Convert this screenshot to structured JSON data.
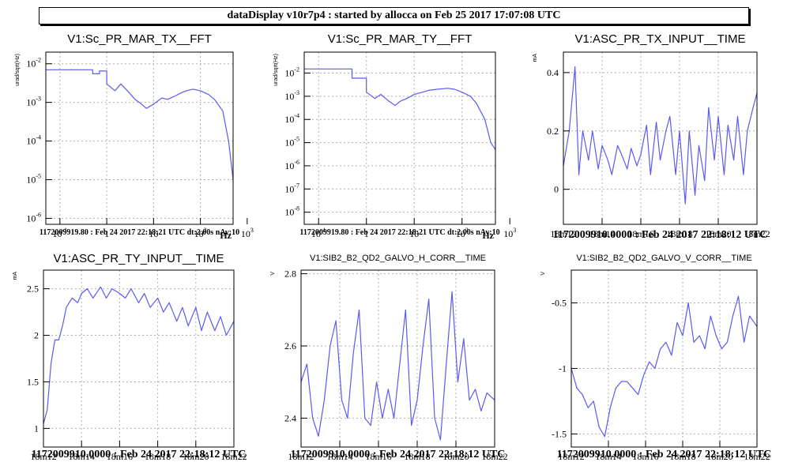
{
  "header": {
    "title": "dataDisplay v10r7p4 : started by allocca on Feb 25 2017 17:07:08 UTC"
  },
  "colors": {
    "trace": "#5b5bef",
    "grid": "#b0b0b0"
  },
  "chart_data": [
    {
      "id": "p1",
      "type": "line",
      "scale": "loglog",
      "title": "V1:Sc_PR_MAR_TX__FFT",
      "ylabel": "urad/sqrt(Hz)",
      "xunit": "Hz",
      "xlim": [
        0.05,
        500
      ],
      "ylim": [
        7e-07,
        0.02
      ],
      "xticks": [
        {
          "v": 0.1,
          "l": "10",
          "e": "-1"
        },
        {
          "v": 1,
          "l": "1",
          "e": ""
        },
        {
          "v": 10,
          "l": "10",
          "e": ""
        },
        {
          "v": 100,
          "l": "10",
          "e": "2"
        },
        {
          "v": 1000,
          "l": "10",
          "e": "3"
        }
      ],
      "yticks": [
        {
          "v": 1e-06,
          "l": "10",
          "e": "-6"
        },
        {
          "v": 1e-05,
          "l": "10",
          "e": "-5"
        },
        {
          "v": 0.0001,
          "l": "10",
          "e": "-4"
        },
        {
          "v": 0.001,
          "l": "10",
          "e": "-3"
        },
        {
          "v": 0.01,
          "l": "10",
          "e": "-2"
        }
      ],
      "footer": "1172009919.80 : Feb 24 2017 22:18:21 UTC dt:2.00s nAv:10",
      "x": [
        0.05,
        0.5,
        0.5,
        0.7,
        0.7,
        1.0,
        1.0,
        1.5,
        2,
        3,
        4,
        5,
        7,
        10,
        15,
        20,
        30,
        40,
        50,
        70,
        100,
        150,
        200,
        300,
        400,
        500
      ],
      "y": [
        0.007,
        0.007,
        0.0055,
        0.0055,
        0.0065,
        0.0065,
        0.003,
        0.002,
        0.003,
        0.0018,
        0.0012,
        0.001,
        0.0007,
        0.0009,
        0.0013,
        0.0012,
        0.0015,
        0.0018,
        0.002,
        0.0022,
        0.002,
        0.0016,
        0.0012,
        0.0006,
        0.0001,
        1e-05
      ]
    },
    {
      "id": "p2",
      "type": "line",
      "scale": "loglog",
      "title": "V1:Sc_PR_MAR_TY__FFT",
      "ylabel": "urad/sqrt(Hz)",
      "xunit": "Hz",
      "xlim": [
        0.05,
        500
      ],
      "ylim": [
        3e-09,
        0.08
      ],
      "xticks": [
        {
          "v": 0.1,
          "l": "10",
          "e": "-1"
        },
        {
          "v": 1,
          "l": "1",
          "e": ""
        },
        {
          "v": 10,
          "l": "10",
          "e": ""
        },
        {
          "v": 100,
          "l": "10",
          "e": "2"
        },
        {
          "v": 1000,
          "l": "10",
          "e": "3"
        }
      ],
      "yticks": [
        {
          "v": 1e-08,
          "l": "10",
          "e": "-8"
        },
        {
          "v": 1e-07,
          "l": "10",
          "e": "-7"
        },
        {
          "v": 1e-06,
          "l": "10",
          "e": "-6"
        },
        {
          "v": 1e-05,
          "l": "10",
          "e": "-5"
        },
        {
          "v": 0.0001,
          "l": "10",
          "e": "-4"
        },
        {
          "v": 0.001,
          "l": "10",
          "e": "-3"
        },
        {
          "v": 0.01,
          "l": "10",
          "e": "-2"
        }
      ],
      "footer": "1172009919.80 : Feb 24 2017 22:18:21 UTC dt:2.00s nAv:10",
      "x": [
        0.05,
        0.5,
        0.5,
        1.0,
        1.0,
        1.5,
        2,
        3,
        4,
        5,
        7,
        10,
        15,
        20,
        30,
        50,
        70,
        100,
        150,
        200,
        300,
        400,
        500
      ],
      "y": [
        0.015,
        0.015,
        0.006,
        0.006,
        0.0015,
        0.0008,
        0.0012,
        0.0006,
        0.0004,
        0.0006,
        0.0008,
        0.0012,
        0.0015,
        0.0018,
        0.002,
        0.0022,
        0.002,
        0.0015,
        0.001,
        0.0005,
        0.0001,
        1e-05,
        5e-06
      ]
    },
    {
      "id": "p3",
      "type": "line",
      "scale": "linear",
      "title": "V1:ASC_PR_TX_INPUT__TIME",
      "ylabel": "mA",
      "xlim": [
        0,
        10
      ],
      "ylim": [
        -0.12,
        0.47
      ],
      "xticks": [
        {
          "v": 0,
          "l": "18m12"
        },
        {
          "v": 2,
          "l": "18m14"
        },
        {
          "v": 4,
          "l": "18m16"
        },
        {
          "v": 6,
          "l": "18m18"
        },
        {
          "v": 8,
          "l": "18m20"
        },
        {
          "v": 10,
          "l": "18m22"
        }
      ],
      "yticks": [
        {
          "v": 0,
          "l": "0"
        },
        {
          "v": 0.2,
          "l": "0.2"
        },
        {
          "v": 0.4,
          "l": "0.4"
        }
      ],
      "footer": "1172009910.0000 : Feb 24 2017 22:18:12 UTC",
      "x": [
        0,
        0.3,
        0.6,
        0.8,
        1.0,
        1.3,
        1.5,
        1.8,
        2.0,
        2.3,
        2.5,
        2.8,
        3.0,
        3.3,
        3.5,
        3.8,
        4.0,
        4.3,
        4.5,
        4.8,
        5.0,
        5.3,
        5.5,
        5.8,
        6.0,
        6.3,
        6.5,
        6.8,
        7.0,
        7.3,
        7.5,
        7.8,
        8.0,
        8.3,
        8.5,
        8.8,
        9.0,
        9.3,
        9.5,
        9.8,
        10
      ],
      "y": [
        0.08,
        0.2,
        0.42,
        0.05,
        0.2,
        0.1,
        0.2,
        0.07,
        0.15,
        0.1,
        0.05,
        0.15,
        0.12,
        0.07,
        0.14,
        0.08,
        0.12,
        0.22,
        0.05,
        0.23,
        0.1,
        0.2,
        0.25,
        0.05,
        0.2,
        -0.05,
        0.2,
        -0.02,
        0.15,
        0.03,
        0.28,
        0.1,
        0.25,
        0.05,
        0.22,
        0.1,
        0.25,
        0.05,
        0.2,
        0.28,
        0.33
      ]
    },
    {
      "id": "p4",
      "type": "line",
      "scale": "linear",
      "title": "V1:ASC_PR_TY_INPUT__TIME",
      "ylabel": "mA",
      "xlim": [
        0,
        10
      ],
      "ylim": [
        0.8,
        2.7
      ],
      "xticks": [
        {
          "v": 0,
          "l": "18m12"
        },
        {
          "v": 2,
          "l": "18m14"
        },
        {
          "v": 4,
          "l": "18m16"
        },
        {
          "v": 6,
          "l": "18m18"
        },
        {
          "v": 8,
          "l": "18m20"
        },
        {
          "v": 10,
          "l": "18m22"
        }
      ],
      "yticks": [
        {
          "v": 1,
          "l": "1"
        },
        {
          "v": 1.5,
          "l": "1.5"
        },
        {
          "v": 2,
          "l": "2"
        },
        {
          "v": 2.5,
          "l": "2.5"
        }
      ],
      "footer": "1172009910.0000 : Feb 24 2017 22:18:12 UTC",
      "x": [
        0,
        0.2,
        0.4,
        0.6,
        0.8,
        1.0,
        1.2,
        1.5,
        1.8,
        2.0,
        2.3,
        2.6,
        3.0,
        3.3,
        3.6,
        4.0,
        4.3,
        4.6,
        5.0,
        5.3,
        5.6,
        6.0,
        6.3,
        6.6,
        7.0,
        7.3,
        7.6,
        8.0,
        8.3,
        8.6,
        9.0,
        9.3,
        9.6,
        10
      ],
      "y": [
        1.05,
        1.2,
        1.7,
        1.95,
        1.95,
        2.1,
        2.3,
        2.4,
        2.35,
        2.45,
        2.5,
        2.4,
        2.52,
        2.4,
        2.5,
        2.45,
        2.4,
        2.5,
        2.35,
        2.45,
        2.3,
        2.4,
        2.25,
        2.35,
        2.15,
        2.3,
        2.1,
        2.3,
        2.05,
        2.25,
        2.05,
        2.2,
        2.0,
        2.15
      ]
    },
    {
      "id": "p5",
      "type": "line",
      "scale": "linear",
      "title": "V1:SIB2_B2_QD2_GALVO_H_CORR__TIME",
      "ylabel": "V",
      "xlim": [
        0,
        10
      ],
      "ylim": [
        2.32,
        2.81
      ],
      "xticks": [
        {
          "v": 0,
          "l": "18m12"
        },
        {
          "v": 2,
          "l": "18m14"
        },
        {
          "v": 4,
          "l": "18m16"
        },
        {
          "v": 6,
          "l": "18m18"
        },
        {
          "v": 8,
          "l": "18m20"
        },
        {
          "v": 10,
          "l": "18m22"
        }
      ],
      "yticks": [
        {
          "v": 2.4,
          "l": "2.4"
        },
        {
          "v": 2.6,
          "l": "2.6"
        },
        {
          "v": 2.8,
          "l": "2.8"
        }
      ],
      "footer": "1172009910.0000 : Feb 24 2017 22:18:12 UTC",
      "x": [
        0,
        0.3,
        0.6,
        0.9,
        1.2,
        1.5,
        1.8,
        2.1,
        2.4,
        2.7,
        3.0,
        3.3,
        3.6,
        3.9,
        4.2,
        4.5,
        4.8,
        5.1,
        5.4,
        5.7,
        6.0,
        6.3,
        6.6,
        6.9,
        7.2,
        7.5,
        7.8,
        8.1,
        8.4,
        8.7,
        9.0,
        9.3,
        9.6,
        10
      ],
      "y": [
        2.5,
        2.55,
        2.4,
        2.35,
        2.45,
        2.6,
        2.67,
        2.45,
        2.4,
        2.58,
        2.7,
        2.4,
        2.38,
        2.5,
        2.4,
        2.48,
        2.4,
        2.55,
        2.7,
        2.38,
        2.45,
        2.6,
        2.73,
        2.4,
        2.34,
        2.55,
        2.75,
        2.5,
        2.62,
        2.45,
        2.48,
        2.42,
        2.47,
        2.45
      ]
    },
    {
      "id": "p6",
      "type": "line",
      "scale": "linear",
      "title": "V1:SIB2_B2_QD2_GALVO_V_CORR__TIME",
      "ylabel": "V",
      "xlim": [
        0,
        10
      ],
      "ylim": [
        -1.6,
        -0.25
      ],
      "xticks": [
        {
          "v": 0,
          "l": "18m12"
        },
        {
          "v": 2,
          "l": "18m14"
        },
        {
          "v": 4,
          "l": "18m16"
        },
        {
          "v": 6,
          "l": "18m18"
        },
        {
          "v": 8,
          "l": "18m20"
        },
        {
          "v": 10,
          "l": "18m22"
        }
      ],
      "yticks": [
        {
          "v": -1.5,
          "l": "-1.5"
        },
        {
          "v": -1,
          "l": "-1"
        },
        {
          "v": -0.5,
          "l": "-0.5"
        }
      ],
      "footer": "1172009910.0000 : Feb 24 2017 22:18:12 UTC",
      "x": [
        0,
        0.3,
        0.6,
        0.9,
        1.2,
        1.5,
        1.8,
        2.1,
        2.4,
        2.7,
        3.0,
        3.3,
        3.6,
        3.9,
        4.2,
        4.5,
        4.8,
        5.1,
        5.4,
        5.7,
        6.0,
        6.3,
        6.6,
        6.9,
        7.2,
        7.5,
        7.8,
        8.1,
        8.4,
        8.7,
        9.0,
        9.3,
        9.6,
        10
      ],
      "y": [
        -1.0,
        -1.15,
        -1.2,
        -1.3,
        -1.25,
        -1.45,
        -1.52,
        -1.3,
        -1.15,
        -1.1,
        -1.1,
        -1.15,
        -1.2,
        -1.05,
        -0.95,
        -1.0,
        -0.85,
        -0.8,
        -0.9,
        -0.65,
        -0.75,
        -0.5,
        -0.8,
        -0.75,
        -0.85,
        -0.6,
        -0.75,
        -0.85,
        -0.8,
        -0.6,
        -0.45,
        -0.8,
        -0.6,
        -0.68
      ]
    }
  ]
}
